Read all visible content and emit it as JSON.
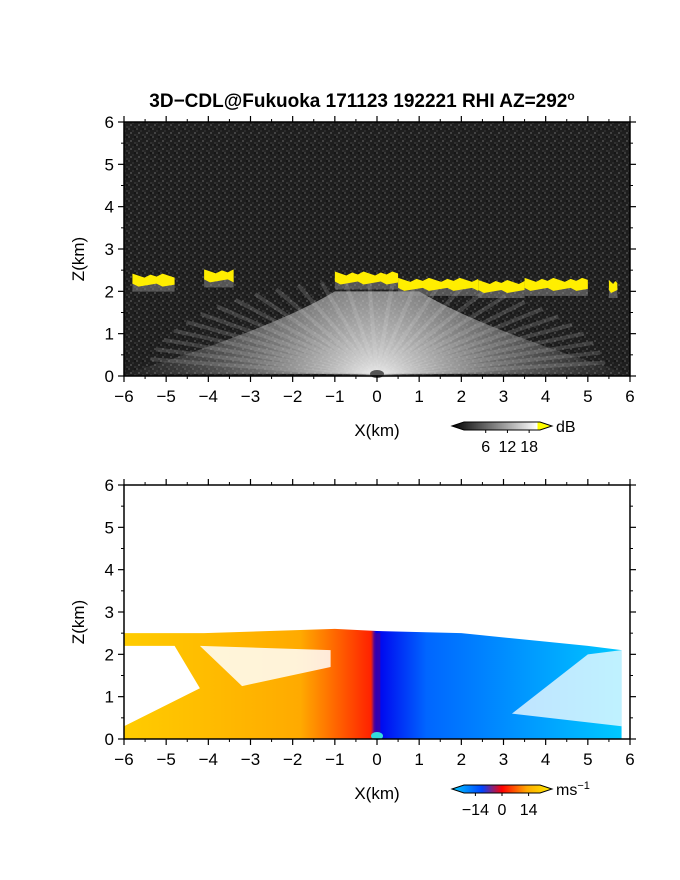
{
  "title": {
    "main": "3D−CDL@Fukuoka 171123 192221 RHI AZ=292",
    "degree": "o"
  },
  "colors": {
    "black": "#000000",
    "white": "#ffffff",
    "intensity_band": "#ffee00",
    "neg_velocity_max": "#00ccff",
    "neg_velocity_zero": "#0000ff",
    "pos_velocity_zero": "#ff0000",
    "pos_velocity_max": "#ffcc00"
  },
  "chart_data": [
    {
      "type": "heatmap",
      "panel": "top",
      "title": "3D−CDL@Fukuoka 171123 192221 RHI AZ=292°",
      "xlabel": "X(km)",
      "ylabel": "Z(km)",
      "xlim": [
        -6,
        6
      ],
      "ylim": [
        0,
        6
      ],
      "xticks": [
        "−6",
        "−5",
        "−4",
        "−3",
        "−2",
        "−1",
        "0",
        "1",
        "2",
        "3",
        "4",
        "5",
        "6"
      ],
      "yticks": [
        "0",
        "1",
        "2",
        "3",
        "4",
        "5",
        "6"
      ],
      "grid": false,
      "quantity": "backscatter intensity",
      "background_level_db": 3,
      "cloud_base_segments_km": [
        {
          "x_from": -5.8,
          "x_to": -4.8,
          "z": 2.3
        },
        {
          "x_from": -4.1,
          "x_to": -3.4,
          "z": 2.4
        },
        {
          "x_from": -1.0,
          "x_to": 0.5,
          "z": 2.35
        },
        {
          "x_from": 0.5,
          "x_to": 2.4,
          "z": 2.2
        },
        {
          "x_from": 2.4,
          "x_to": 3.5,
          "z": 2.15
        },
        {
          "x_from": 3.5,
          "x_to": 5.0,
          "z": 2.2
        },
        {
          "x_from": 5.5,
          "x_to": 5.7,
          "z": 2.15
        }
      ],
      "colorbar": {
        "label": "dB",
        "ticks": [
          "6",
          "12",
          "18"
        ],
        "range": [
          0,
          21
        ]
      }
    },
    {
      "type": "heatmap",
      "panel": "bottom",
      "xlabel": "X(km)",
      "ylabel": "Z(km)",
      "xlim": [
        -6,
        6
      ],
      "ylim": [
        0,
        6
      ],
      "xticks": [
        "−6",
        "−5",
        "−4",
        "−3",
        "−2",
        "−1",
        "0",
        "1",
        "2",
        "3",
        "4",
        "5",
        "6"
      ],
      "yticks": [
        "0",
        "1",
        "2",
        "3",
        "4",
        "5",
        "6"
      ],
      "grid": false,
      "quantity": "radial velocity",
      "negative_side": "x > 0",
      "positive_side": "x < 0",
      "echo_top_km": [
        {
          "x": -6.0,
          "z": 2.5
        },
        {
          "x": -4.1,
          "z": 2.5
        },
        {
          "x": -1.0,
          "z": 2.6
        },
        {
          "x": 0.0,
          "z": 2.55
        },
        {
          "x": 2.0,
          "z": 2.5
        },
        {
          "x": 4.0,
          "z": 2.3
        },
        {
          "x": 5.0,
          "z": 2.2
        },
        {
          "x": 5.8,
          "z": 2.1
        }
      ],
      "colorbar": {
        "label": "ms",
        "label_exponent": "−1",
        "ticks": [
          "−14",
          "0",
          "14"
        ],
        "range": [
          -20,
          20
        ]
      }
    }
  ]
}
